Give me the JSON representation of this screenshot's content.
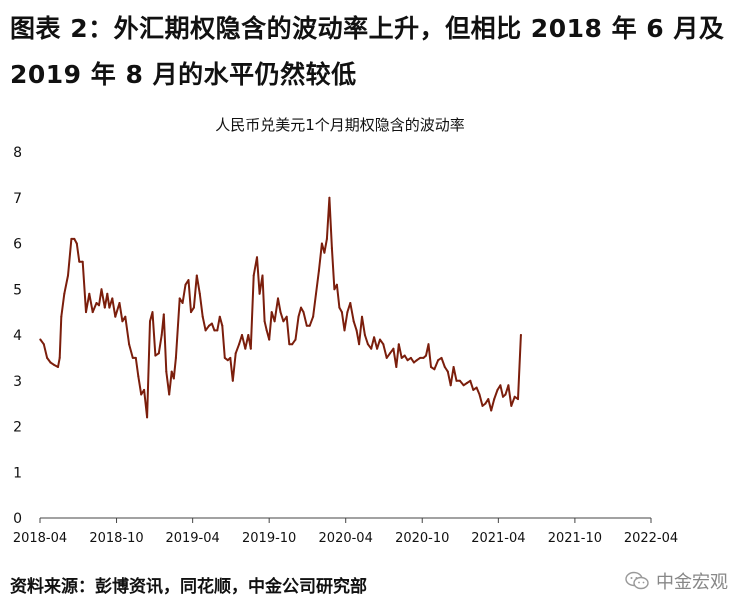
{
  "figure": {
    "title": "图表 2：外汇期权隐含的波动率上升，但相比 2018 年 6 月及 2019 年 8 月的水平仍然较低",
    "source": "资料来源：彭博资讯，同花顺，中金公司研究部",
    "watermark": "中金宏观",
    "watermark_icon": "wechat-icon"
  },
  "chart_data": {
    "type": "line",
    "title": "人民币兑美元1个月期权隐含的波动率",
    "xlabel": "",
    "ylabel": "",
    "ylim": [
      0,
      8
    ],
    "yticks": [
      "0",
      "1",
      "2",
      "3",
      "4",
      "5",
      "6",
      "7",
      "8"
    ],
    "xlim": [
      "2018-04",
      "2022-04"
    ],
    "xticks": [
      "2018-04",
      "2018-10",
      "2019-04",
      "2019-10",
      "2020-04",
      "2020-10",
      "2021-04",
      "2021-10",
      "2022-04"
    ],
    "grid": false,
    "line_color": "#7b1e0c",
    "series": [
      {
        "points": [
          [
            "2018-04-02",
            3.9
          ],
          [
            "2018-04-10",
            3.8
          ],
          [
            "2018-04-18",
            3.5
          ],
          [
            "2018-04-26",
            3.4
          ],
          [
            "2018-05-04",
            3.35
          ],
          [
            "2018-05-14",
            3.3
          ],
          [
            "2018-05-18",
            3.5
          ],
          [
            "2018-05-22",
            4.4
          ],
          [
            "2018-05-29",
            4.9
          ],
          [
            "2018-06-07",
            5.3
          ],
          [
            "2018-06-15",
            6.1
          ],
          [
            "2018-06-22",
            6.1
          ],
          [
            "2018-06-28",
            6.0
          ],
          [
            "2018-07-04",
            5.6
          ],
          [
            "2018-07-12",
            5.6
          ],
          [
            "2018-07-20",
            4.5
          ],
          [
            "2018-07-28",
            4.9
          ],
          [
            "2018-08-05",
            4.5
          ],
          [
            "2018-08-14",
            4.7
          ],
          [
            "2018-08-20",
            4.65
          ],
          [
            "2018-08-26",
            5.0
          ],
          [
            "2018-09-03",
            4.6
          ],
          [
            "2018-09-09",
            4.9
          ],
          [
            "2018-09-14",
            4.6
          ],
          [
            "2018-09-21",
            4.8
          ],
          [
            "2018-09-28",
            4.4
          ],
          [
            "2018-10-08",
            4.7
          ],
          [
            "2018-10-15",
            4.3
          ],
          [
            "2018-10-22",
            4.4
          ],
          [
            "2018-10-31",
            3.8
          ],
          [
            "2018-11-09",
            3.5
          ],
          [
            "2018-11-16",
            3.5
          ],
          [
            "2018-11-22",
            3.1
          ],
          [
            "2018-11-29",
            2.7
          ],
          [
            "2018-12-06",
            2.8
          ],
          [
            "2018-12-13",
            2.2
          ],
          [
            "2018-12-20",
            4.3
          ],
          [
            "2018-12-26",
            4.5
          ],
          [
            "2019-01-02",
            3.55
          ],
          [
            "2019-01-10",
            3.6
          ],
          [
            "2019-01-17",
            4.0
          ],
          [
            "2019-01-22",
            4.45
          ],
          [
            "2019-01-28",
            3.2
          ],
          [
            "2019-02-04",
            2.7
          ],
          [
            "2019-02-10",
            3.2
          ],
          [
            "2019-02-15",
            3.05
          ],
          [
            "2019-02-20",
            3.5
          ],
          [
            "2019-03-01",
            4.8
          ],
          [
            "2019-03-08",
            4.7
          ],
          [
            "2019-03-15",
            5.1
          ],
          [
            "2019-03-22",
            5.2
          ],
          [
            "2019-03-28",
            4.5
          ],
          [
            "2019-04-04",
            4.6
          ],
          [
            "2019-04-11",
            5.3
          ],
          [
            "2019-04-18",
            4.9
          ],
          [
            "2019-04-25",
            4.4
          ],
          [
            "2019-05-02",
            4.1
          ],
          [
            "2019-05-10",
            4.2
          ],
          [
            "2019-05-17",
            4.25
          ],
          [
            "2019-05-23",
            4.1
          ],
          [
            "2019-05-30",
            4.1
          ],
          [
            "2019-06-05",
            4.4
          ],
          [
            "2019-06-11",
            4.2
          ],
          [
            "2019-06-17",
            3.5
          ],
          [
            "2019-06-24",
            3.45
          ],
          [
            "2019-06-30",
            3.5
          ],
          [
            "2019-07-06",
            3.0
          ],
          [
            "2019-07-13",
            3.6
          ],
          [
            "2019-07-21",
            3.8
          ],
          [
            "2019-07-28",
            4.0
          ],
          [
            "2019-08-05",
            3.7
          ],
          [
            "2019-08-12",
            4.0
          ],
          [
            "2019-08-18",
            3.7
          ],
          [
            "2019-08-25",
            5.3
          ],
          [
            "2019-09-02",
            5.7
          ],
          [
            "2019-09-08",
            4.9
          ],
          [
            "2019-09-15",
            5.3
          ],
          [
            "2019-09-20",
            4.3
          ],
          [
            "2019-09-25",
            4.1
          ],
          [
            "2019-10-01",
            3.9
          ],
          [
            "2019-10-07",
            4.5
          ],
          [
            "2019-10-14",
            4.3
          ],
          [
            "2019-10-22",
            4.8
          ],
          [
            "2019-10-28",
            4.5
          ],
          [
            "2019-11-04",
            4.3
          ],
          [
            "2019-11-12",
            4.4
          ],
          [
            "2019-11-18",
            3.8
          ],
          [
            "2019-11-25",
            3.8
          ],
          [
            "2019-12-03",
            3.9
          ],
          [
            "2019-12-10",
            4.4
          ],
          [
            "2019-12-16",
            4.6
          ],
          [
            "2019-12-22",
            4.5
          ],
          [
            "2019-12-30",
            4.2
          ],
          [
            "2020-01-06",
            4.2
          ],
          [
            "2020-01-14",
            4.4
          ],
          [
            "2020-01-21",
            4.9
          ],
          [
            "2020-01-28",
            5.4
          ],
          [
            "2020-02-04",
            6.0
          ],
          [
            "2020-02-10",
            5.8
          ],
          [
            "2020-02-16",
            6.1
          ],
          [
            "2020-02-22",
            7.0
          ],
          [
            "2020-02-28",
            5.9
          ],
          [
            "2020-03-05",
            5.0
          ],
          [
            "2020-03-11",
            5.1
          ],
          [
            "2020-03-17",
            4.6
          ],
          [
            "2020-03-23",
            4.5
          ],
          [
            "2020-03-29",
            4.1
          ],
          [
            "2020-04-05",
            4.5
          ],
          [
            "2020-04-12",
            4.7
          ],
          [
            "2020-04-20",
            4.3
          ],
          [
            "2020-04-27",
            4.1
          ],
          [
            "2020-05-03",
            3.8
          ],
          [
            "2020-05-10",
            4.4
          ],
          [
            "2020-05-17",
            4.0
          ],
          [
            "2020-05-24",
            3.8
          ],
          [
            "2020-06-01",
            3.7
          ],
          [
            "2020-06-08",
            3.95
          ],
          [
            "2020-06-15",
            3.7
          ],
          [
            "2020-06-22",
            3.9
          ],
          [
            "2020-06-30",
            3.8
          ],
          [
            "2020-07-08",
            3.5
          ],
          [
            "2020-07-16",
            3.6
          ],
          [
            "2020-07-24",
            3.7
          ],
          [
            "2020-07-31",
            3.3
          ],
          [
            "2020-08-06",
            3.8
          ],
          [
            "2020-08-13",
            3.5
          ],
          [
            "2020-08-20",
            3.55
          ],
          [
            "2020-08-27",
            3.45
          ],
          [
            "2020-09-04",
            3.5
          ],
          [
            "2020-09-11",
            3.4
          ],
          [
            "2020-09-18",
            3.45
          ],
          [
            "2020-09-26",
            3.5
          ],
          [
            "2020-10-04",
            3.5
          ],
          [
            "2020-10-10",
            3.55
          ],
          [
            "2020-10-16",
            3.8
          ],
          [
            "2020-10-22",
            3.3
          ],
          [
            "2020-10-30",
            3.25
          ],
          [
            "2020-11-08",
            3.45
          ],
          [
            "2020-11-16",
            3.5
          ],
          [
            "2020-11-24",
            3.3
          ],
          [
            "2020-12-01",
            3.2
          ],
          [
            "2020-12-08",
            2.9
          ],
          [
            "2020-12-15",
            3.3
          ],
          [
            "2020-12-22",
            3.0
          ],
          [
            "2020-12-30",
            3.0
          ],
          [
            "2021-01-08",
            2.9
          ],
          [
            "2021-01-16",
            2.95
          ],
          [
            "2021-01-24",
            3.0
          ],
          [
            "2021-01-31",
            2.8
          ],
          [
            "2021-02-08",
            2.85
          ],
          [
            "2021-02-15",
            2.7
          ],
          [
            "2021-02-22",
            2.45
          ],
          [
            "2021-03-01",
            2.5
          ],
          [
            "2021-03-08",
            2.6
          ],
          [
            "2021-03-15",
            2.35
          ],
          [
            "2021-03-22",
            2.6
          ],
          [
            "2021-03-30",
            2.8
          ],
          [
            "2021-04-06",
            2.9
          ],
          [
            "2021-04-12",
            2.65
          ],
          [
            "2021-04-18",
            2.7
          ],
          [
            "2021-04-25",
            2.9
          ],
          [
            "2021-05-02",
            2.45
          ],
          [
            "2021-05-10",
            2.65
          ],
          [
            "2021-05-18",
            2.6
          ],
          [
            "2021-05-25",
            4.0
          ]
        ]
      }
    ]
  }
}
